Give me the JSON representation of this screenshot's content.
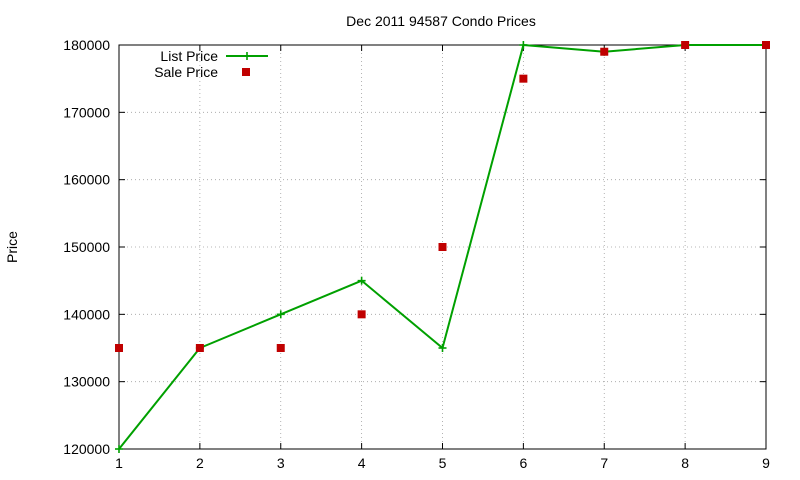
{
  "chart_data": {
    "type": "line",
    "title": "Dec 2011 94587 Condo Prices",
    "xlabel": "",
    "ylabel": "Price",
    "xlim": [
      1,
      9
    ],
    "ylim": [
      120000,
      180000
    ],
    "xticks": [
      1,
      2,
      3,
      4,
      5,
      6,
      7,
      8,
      9
    ],
    "yticks": [
      120000,
      130000,
      140000,
      150000,
      160000,
      170000,
      180000
    ],
    "grid": true,
    "legend_position": "top-left",
    "series": [
      {
        "name": "List Price",
        "style": "linespoints",
        "marker": "plus",
        "color": "#00a000",
        "x": [
          1,
          2,
          3,
          4,
          5,
          6,
          7,
          8,
          9
        ],
        "y": [
          120000,
          135000,
          140000,
          145000,
          135000,
          180000,
          179000,
          180000,
          180000
        ]
      },
      {
        "name": "Sale Price",
        "style": "points",
        "marker": "square",
        "color": "#c00000",
        "x": [
          1,
          2,
          3,
          4,
          5,
          6,
          7,
          8,
          9
        ],
        "y": [
          135000,
          135000,
          135000,
          140000,
          150000,
          175000,
          179000,
          180000,
          180000
        ]
      }
    ]
  }
}
